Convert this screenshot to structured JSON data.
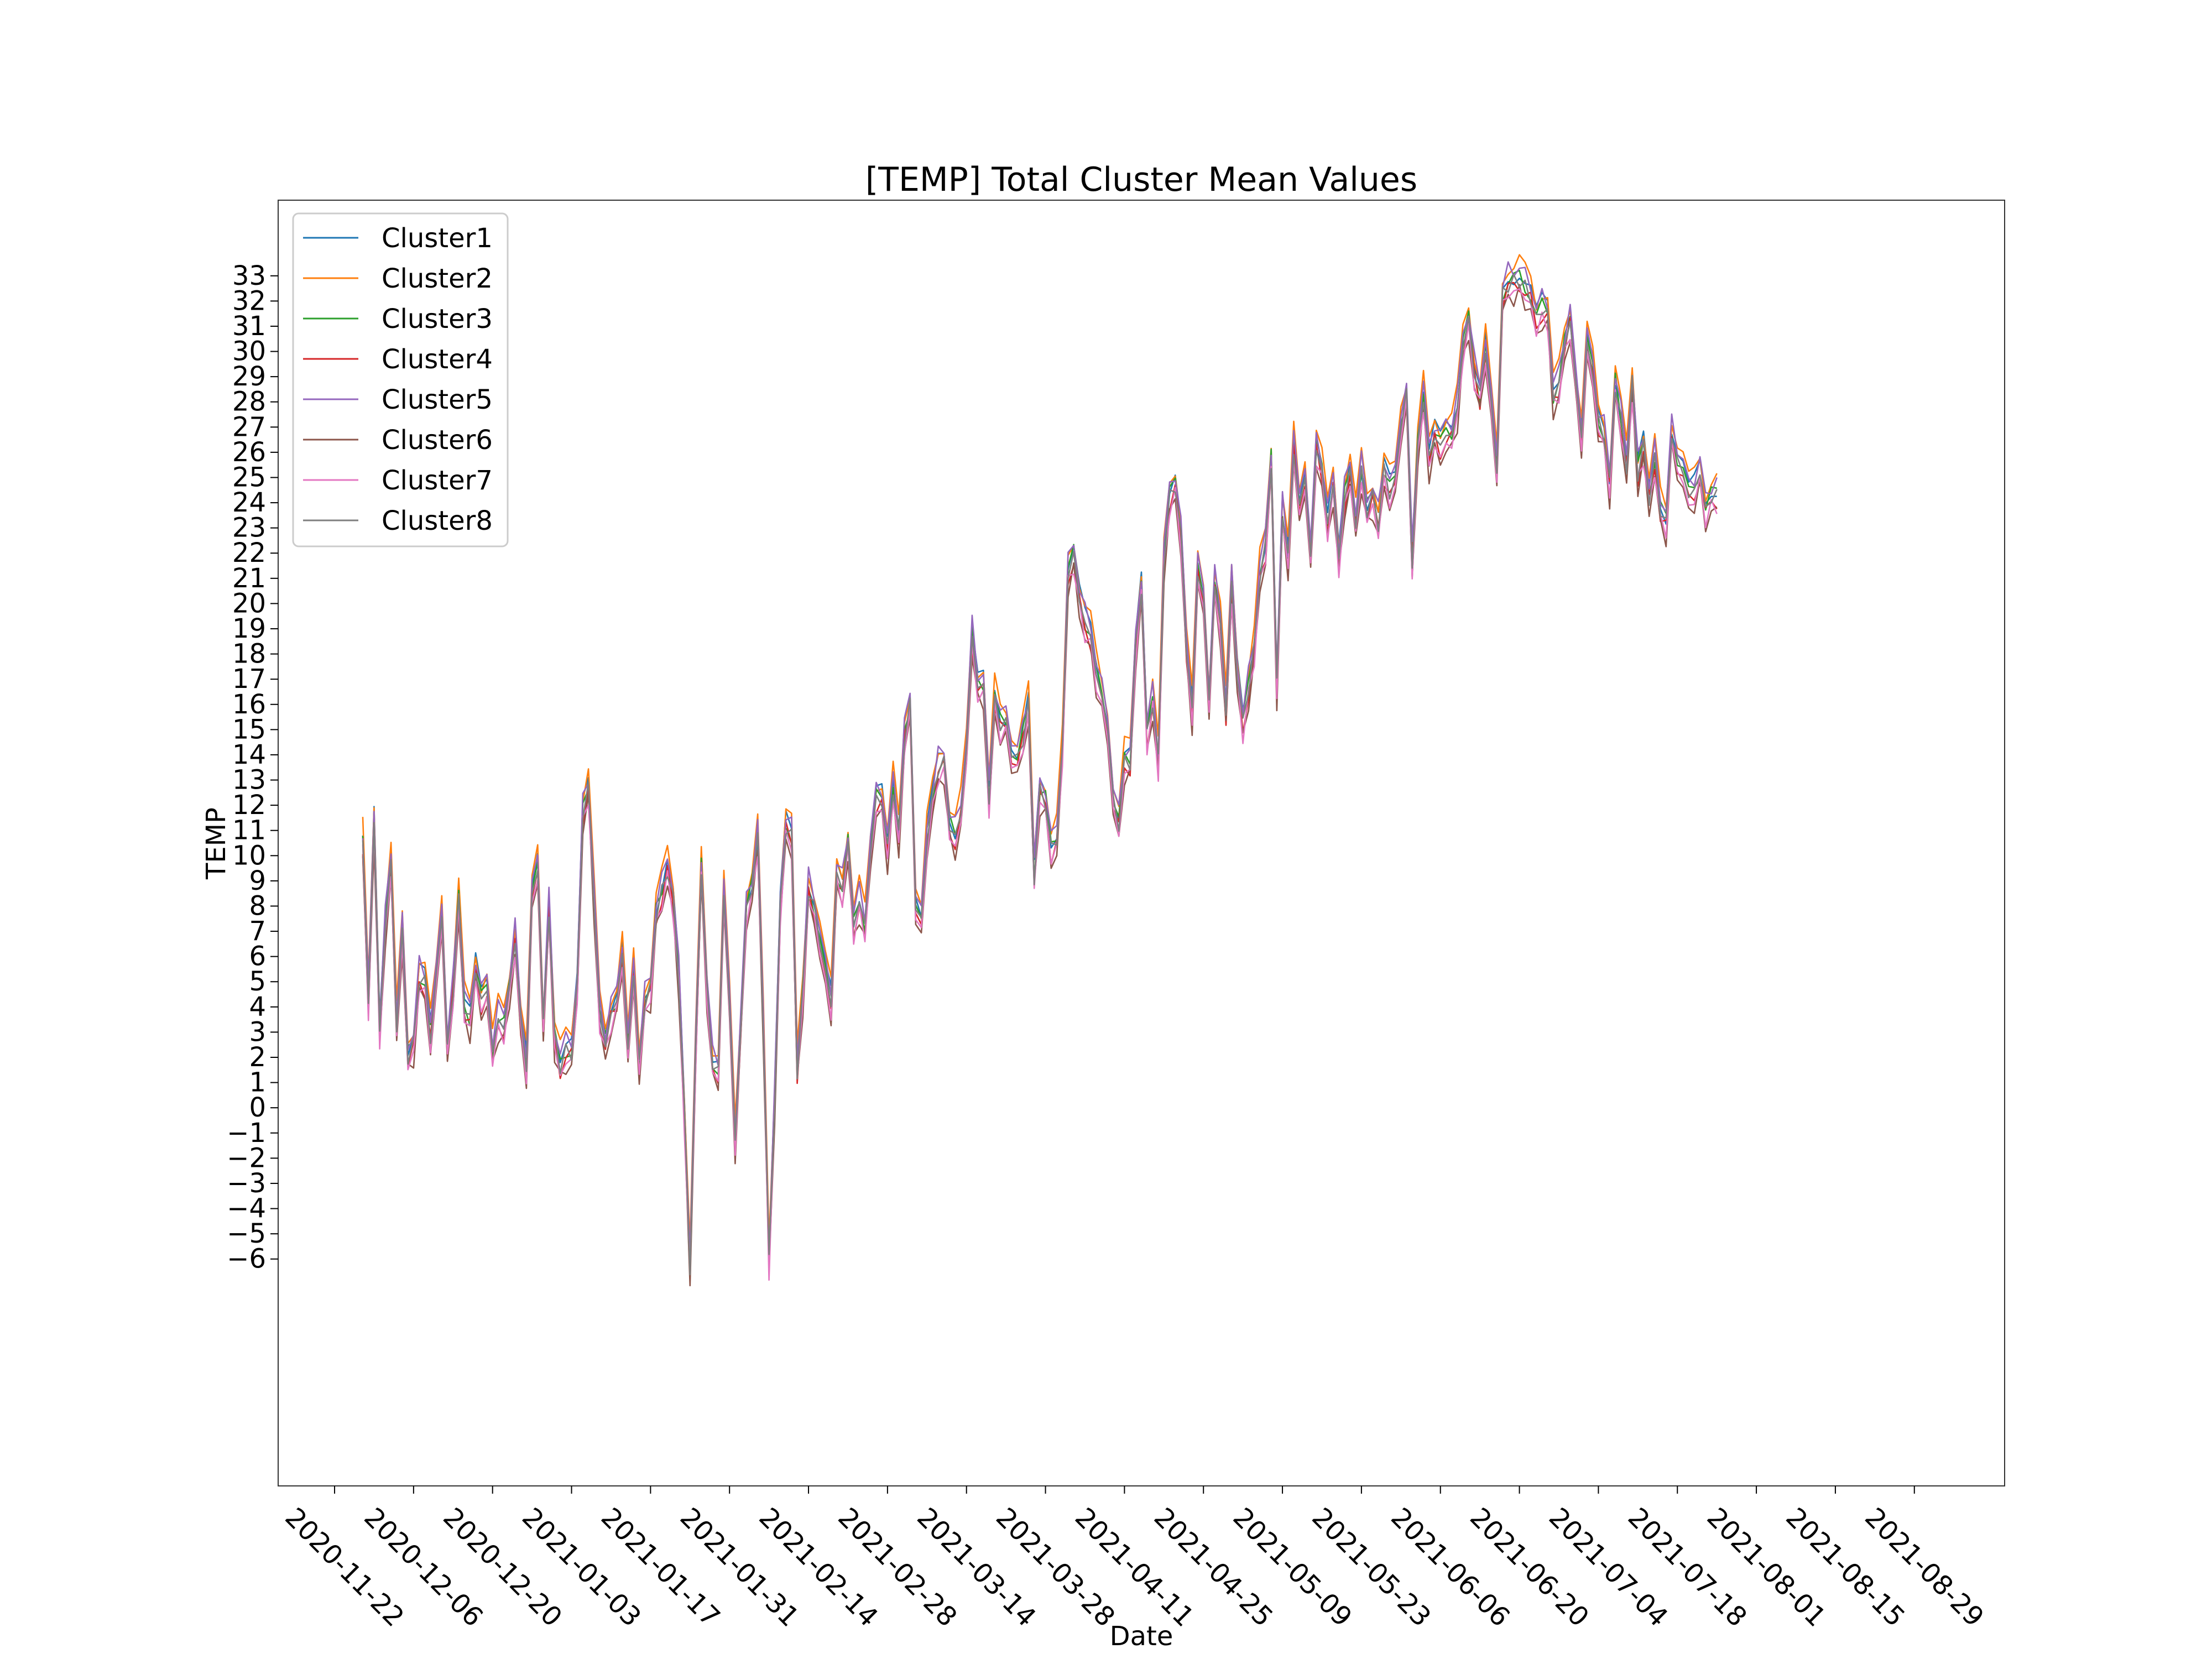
{
  "chart_data": {
    "type": "line",
    "title": "[TEMP] Total Cluster Mean Values",
    "xlabel": "Date",
    "ylabel": "TEMP",
    "x_range": [
      "2020-11-12",
      "2021-09-14"
    ],
    "ylim": [
      -15,
      36
    ],
    "yticks": [
      -6,
      -5,
      -4,
      -3,
      -2,
      -1,
      0,
      1,
      2,
      3,
      4,
      5,
      6,
      7,
      8,
      9,
      10,
      11,
      12,
      13,
      14,
      15,
      16,
      17,
      18,
      19,
      20,
      21,
      22,
      23,
      24,
      25,
      26,
      27,
      28,
      29,
      30,
      31,
      32,
      33
    ],
    "xticks": [
      "2020-11-22",
      "2020-12-06",
      "2020-12-20",
      "2021-01-03",
      "2021-01-17",
      "2021-01-31",
      "2021-02-14",
      "2021-02-28",
      "2021-03-14",
      "2021-03-28",
      "2021-04-11",
      "2021-04-25",
      "2021-05-09",
      "2021-05-23",
      "2021-06-06",
      "2021-06-20",
      "2021-07-04",
      "2021-07-18",
      "2021-08-01",
      "2021-08-15",
      "2021-08-29"
    ],
    "x_start": "2020-11-27",
    "x_step_days": 1,
    "legend_position": "upper-left",
    "grid": false,
    "series_base": [
      10.8,
      4.5,
      11.6,
      3.3,
      7.5,
      10,
      3.5,
      7.2,
      2.3,
      2.8,
      5.5,
      5.2,
      3.2,
      5.2,
      8.2,
      2.5,
      5,
      8.5,
      4.3,
      3.8,
      5.8,
      4.5,
      5,
      2.5,
      3.8,
      3.5,
      5,
      7,
      3.7,
      2,
      8.5,
      10,
      3.5,
      8.2,
      3,
      2,
      2.5,
      2.5,
      5,
      12,
      13,
      8.5,
      4,
      2.8,
      4,
      4.5,
      6.5,
      2.5,
      5.7,
      2,
      4.5,
      5,
      8,
      8.8,
      9.8,
      8.5,
      5.5,
      0,
      -6,
      2.5,
      9.8,
      5,
      2,
      1.8,
      8.8,
      4.3,
      -1,
      3.5,
      8.2,
      9,
      11,
      3.5,
      -5.8,
      0.5,
      8.2,
      11.5,
      11,
      1.8,
      4.8,
      9,
      8.2,
      7,
      5.5,
      4.5,
      9.5,
      9,
      10.8,
      7.5,
      8.5,
      7.5,
      10.5,
      12.5,
      12.5,
      10.5,
      13,
      11,
      15,
      16.2,
      8.5,
      7.5,
      11,
      12.5,
      13.8,
      14,
      11.5,
      11,
      12,
      14.5,
      19,
      17,
      17,
      12.5,
      16.5,
      15.5,
      15.5,
      14.5,
      14,
      15,
      16.2,
      9.5,
      12.8,
      12.5,
      10.5,
      11,
      14.5,
      21.5,
      22.2,
      20.5,
      19.5,
      19,
      17.5,
      16.5,
      15.5,
      12.5,
      11.5,
      14,
      14,
      18.5,
      21,
      15,
      16.5,
      14,
      22,
      24.5,
      25,
      23,
      18.5,
      16,
      21.5,
      20.5,
      16.5,
      21,
      19.5,
      16,
      21,
      17.5,
      15.5,
      17,
      18.5,
      21.5,
      22.5,
      26,
      17,
      24,
      22,
      26.5,
      24,
      25.5,
      22,
      26.5,
      25.5,
      23.5,
      25,
      22,
      24.5,
      25.5,
      23.5,
      25.5,
      24,
      24.5,
      23.5,
      25.5,
      24.8,
      25,
      27.5,
      28.5,
      22,
      26.5,
      28.5,
      26,
      27,
      26.5,
      27,
      27,
      28,
      30.5,
      31.5,
      29.5,
      28.5,
      30.5,
      28,
      25.8,
      32.5,
      33,
      33,
      33.2,
      32.8,
      32.5,
      31.5,
      32,
      31.8,
      28.5,
      29,
      30.5,
      31.5,
      29,
      27,
      30.5,
      29.5,
      27.5,
      27,
      25,
      29,
      27.5,
      25.8,
      29,
      25.5,
      26.5,
      24.5,
      26,
      24,
      23.5,
      27,
      26,
      25.5,
      24.5,
      24.8,
      25.5,
      24,
      24.5,
      24.6
    ],
    "series": [
      {
        "name": "Cluster1",
        "color": "#1f77b4",
        "offset": 0.0
      },
      {
        "name": "Cluster2",
        "color": "#ff7f0e",
        "offset": 0.4
      },
      {
        "name": "Cluster3",
        "color": "#2ca02c",
        "offset": -0.2
      },
      {
        "name": "Cluster4",
        "color": "#d62728",
        "offset": -0.5
      },
      {
        "name": "Cluster5",
        "color": "#9467bd",
        "offset": 0.2
      },
      {
        "name": "Cluster6",
        "color": "#8c564b",
        "offset": -0.9
      },
      {
        "name": "Cluster7",
        "color": "#e377c2",
        "offset": -0.7
      },
      {
        "name": "Cluster8",
        "color": "#7f7f7f",
        "offset": -0.3
      }
    ]
  }
}
